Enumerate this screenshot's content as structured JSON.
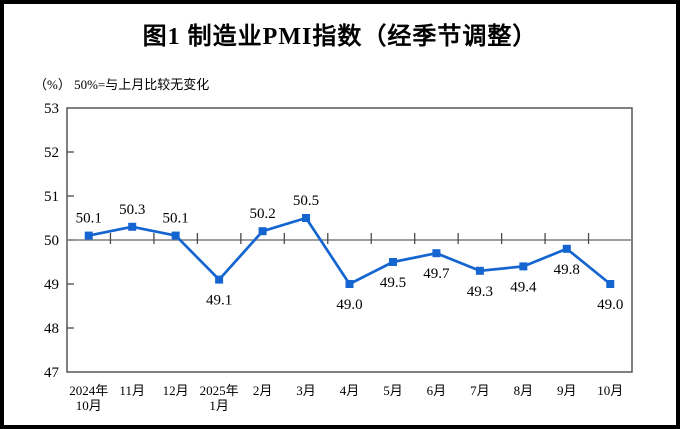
{
  "figure": {
    "title": "图1  制造业PMI指数（经季节调整）",
    "subtitle": "（%） 50%=与上月比较无变化"
  },
  "chart_data": {
    "type": "line",
    "title": "图1 制造业PMI指数（经季节调整）",
    "unit_note": "（%） 50%=与上月比较无变化",
    "categories": [
      [
        "2024年",
        "10月"
      ],
      [
        "11月"
      ],
      [
        "12月"
      ],
      [
        "2025年",
        "1月"
      ],
      [
        "2月"
      ],
      [
        "3月"
      ],
      [
        "4月"
      ],
      [
        "5月"
      ],
      [
        "6月"
      ],
      [
        "7月"
      ],
      [
        "8月"
      ],
      [
        "9月"
      ],
      [
        "10月"
      ]
    ],
    "values": [
      50.1,
      50.3,
      50.1,
      49.1,
      50.2,
      50.5,
      49.0,
      49.5,
      49.7,
      49.3,
      49.4,
      49.8,
      49.0
    ],
    "labels": [
      "50.1",
      "50.3",
      "50.1",
      "49.1",
      "50.2",
      "50.5",
      "49.0",
      "49.5",
      "49.7",
      "49.3",
      "49.4",
      "49.8",
      "49.0"
    ],
    "y_ticks": [
      "53",
      "52",
      "51",
      "50",
      "49",
      "48",
      "47"
    ],
    "ylim": [
      47,
      53
    ],
    "reference_value": 50,
    "grid": false,
    "legend": "none",
    "marker": "square",
    "colors": {
      "series": "#1565d0",
      "frame": "#4a4a4a",
      "reference_line": "#7f7f7f",
      "tick": "#4a4a4a",
      "text": "#000000"
    }
  }
}
